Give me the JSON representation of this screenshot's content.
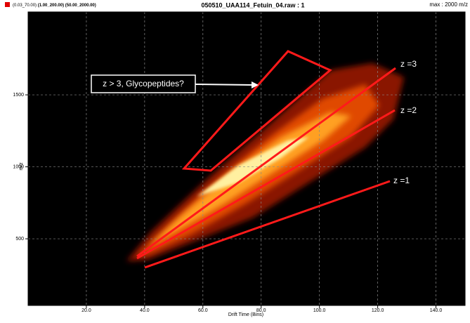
{
  "chart_data": {
    "type": "heatmap",
    "header_ranges": "(0.03_70.00)",
    "header_ranges_bold": "(1.00_200.00) (50.00_2000.00)",
    "title": "050510_UAA114_Fetuin_04.raw : 1",
    "max_label": "max : 2000 m/z",
    "x_label": "Drift Time (Bins)",
    "y_label": "m/z",
    "xlim": [
      0,
      150
    ],
    "ylim": [
      37,
      2076
    ],
    "xticks": [
      {
        "value": 20,
        "label": "20.0"
      },
      {
        "value": 40,
        "label": "40.0"
      },
      {
        "value": 60,
        "label": "60.0"
      },
      {
        "value": 80,
        "label": "80.0"
      },
      {
        "value": 100,
        "label": "100.0"
      },
      {
        "value": 120,
        "label": "120.0"
      },
      {
        "value": 140,
        "label": "140.0"
      }
    ],
    "yticks": [
      500,
      1000,
      1500
    ],
    "grid": true,
    "annotations": [
      "z > 3, Glycopeptides?",
      "z =3",
      "z =2",
      "z =1"
    ]
  }
}
